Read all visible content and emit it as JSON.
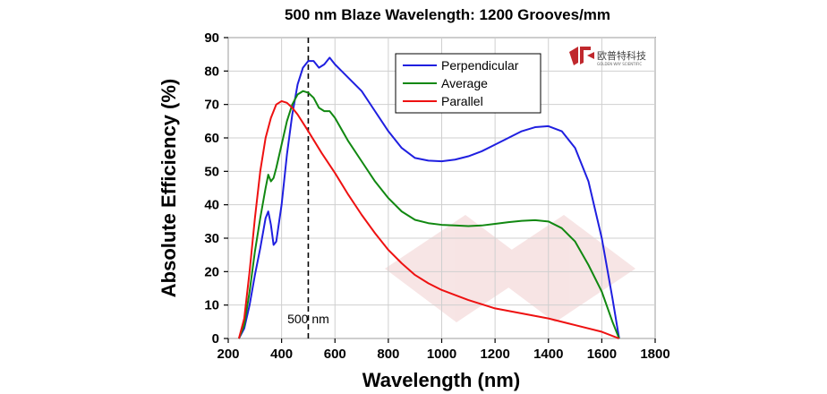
{
  "chart_data": {
    "type": "line",
    "title": "500 nm Blaze Wavelength: 1200 Grooves/mm",
    "xlabel": "Wavelength (nm)",
    "ylabel": "Absolute Efficiency (%)",
    "xlim": [
      200,
      1800
    ],
    "ylim": [
      0,
      90
    ],
    "xticks": [
      200,
      400,
      600,
      800,
      1000,
      1200,
      1400,
      1600,
      1800
    ],
    "yticks": [
      0,
      10,
      20,
      30,
      40,
      50,
      60,
      70,
      80,
      90
    ],
    "grid": true,
    "legend_position": "top-right",
    "series": [
      {
        "name": "Perpendicular",
        "color": "#1f1fe0",
        "x": [
          240,
          260,
          280,
          300,
          320,
          340,
          350,
          360,
          370,
          380,
          400,
          420,
          440,
          460,
          480,
          500,
          520,
          540,
          560,
          580,
          600,
          650,
          700,
          750,
          800,
          850,
          900,
          950,
          1000,
          1050,
          1100,
          1150,
          1200,
          1250,
          1300,
          1350,
          1400,
          1450,
          1500,
          1550,
          1600,
          1640,
          1665
        ],
        "y": [
          0,
          3,
          10,
          19,
          27,
          36,
          38,
          34,
          28,
          29,
          40,
          55,
          67,
          76,
          81,
          83,
          83,
          81,
          82,
          84,
          82,
          78,
          74,
          68,
          62,
          57,
          54,
          53.2,
          53,
          53.5,
          54.5,
          56,
          58,
          60,
          62,
          63.2,
          63.5,
          62,
          57,
          47,
          30,
          12,
          0
        ]
      },
      {
        "name": "Average",
        "color": "#118811",
        "x": [
          240,
          260,
          280,
          300,
          320,
          340,
          350,
          360,
          370,
          380,
          400,
          420,
          440,
          460,
          480,
          500,
          520,
          540,
          560,
          580,
          600,
          650,
          700,
          750,
          800,
          850,
          900,
          950,
          1000,
          1050,
          1100,
          1150,
          1200,
          1250,
          1300,
          1350,
          1400,
          1450,
          1500,
          1550,
          1600,
          1640,
          1665
        ],
        "y": [
          0,
          4,
          14,
          26,
          36,
          45,
          49,
          47,
          48,
          51,
          58,
          65,
          70,
          73,
          74,
          73.5,
          72,
          69,
          68,
          68,
          66,
          59,
          53,
          47,
          42,
          38,
          35.5,
          34.5,
          34,
          33.8,
          33.6,
          33.8,
          34.3,
          34.8,
          35.2,
          35.4,
          35,
          33,
          29,
          22,
          14,
          5,
          0
        ]
      },
      {
        "name": "Parallel",
        "color": "#ee1111",
        "x": [
          240,
          260,
          280,
          300,
          320,
          340,
          360,
          380,
          400,
          420,
          440,
          460,
          480,
          500,
          550,
          600,
          650,
          700,
          750,
          800,
          850,
          900,
          950,
          1000,
          1100,
          1200,
          1300,
          1400,
          1500,
          1600,
          1665
        ],
        "y": [
          0,
          6,
          20,
          36,
          50,
          60,
          66,
          70,
          71,
          70.5,
          69,
          67,
          64.5,
          62,
          55.5,
          49.5,
          43,
          37,
          31.5,
          26.5,
          22.5,
          19,
          16.5,
          14.5,
          11.5,
          9,
          7.5,
          6,
          4,
          2,
          0
        ]
      }
    ],
    "annotations": [
      {
        "text": "500 nm",
        "x": 500,
        "line": "dashed-vertical"
      }
    ]
  },
  "logo": {
    "name": "欧普特科技",
    "subtitle": "GOLDEN WAY SCIENTIFIC",
    "color": "#c0282d"
  }
}
